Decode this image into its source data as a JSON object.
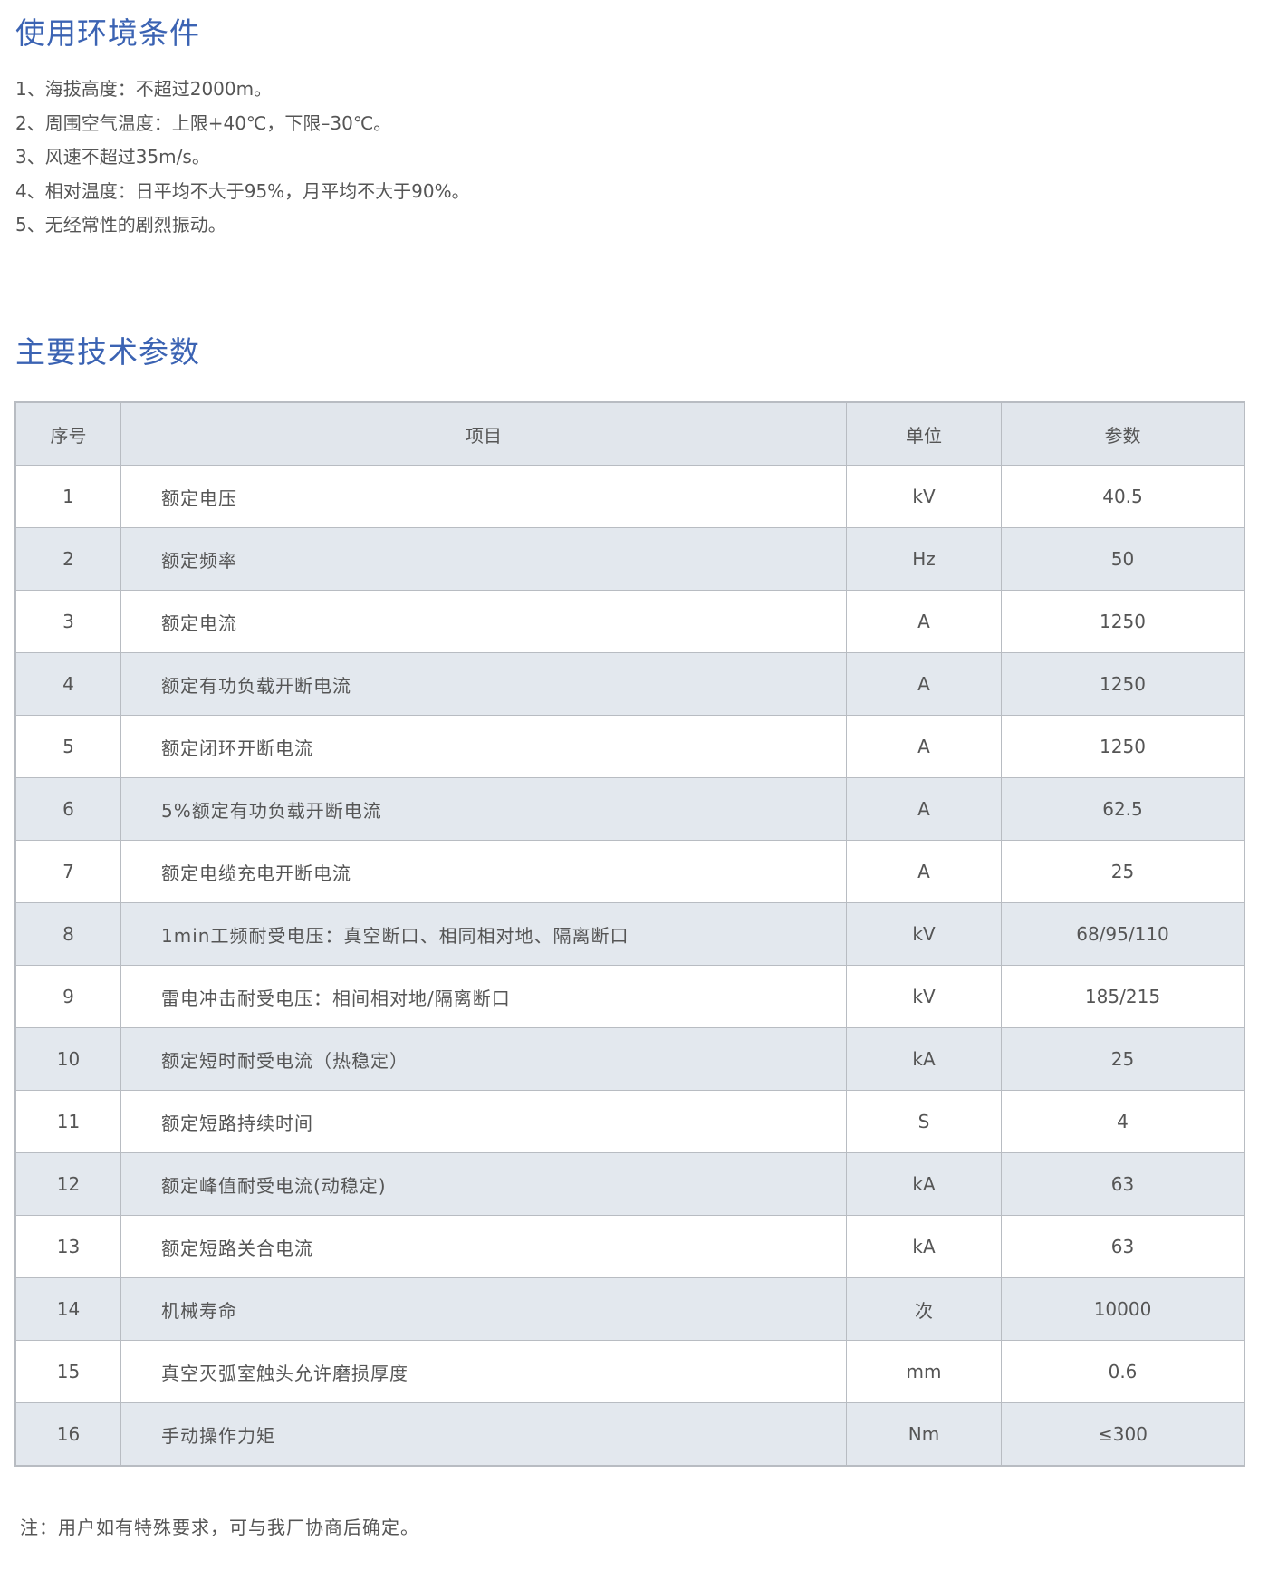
{
  "env": {
    "title": "使用环境条件",
    "items": [
      "1、海拔高度：不超过2000m。",
      "2、周围空气温度：上限+40℃，下限–30℃。",
      "3、风速不超过35m/s。",
      "4、相对温度：日平均不大于95%，月平均不大于90%。",
      "5、无经常性的剧烈振动。"
    ]
  },
  "params": {
    "title": "主要技术参数",
    "headers": [
      "序号",
      "项目",
      "单位",
      "参数"
    ],
    "rows": [
      [
        "1",
        "额定电压",
        "kV",
        "40.5"
      ],
      [
        "2",
        "额定频率",
        "Hz",
        "50"
      ],
      [
        "3",
        "额定电流",
        "A",
        "1250"
      ],
      [
        "4",
        "额定有功负载开断电流",
        "A",
        "1250"
      ],
      [
        "5",
        "额定闭环开断电流",
        "A",
        "1250"
      ],
      [
        "6",
        "5%额定有功负载开断电流",
        "A",
        "62.5"
      ],
      [
        "7",
        "额定电缆充电开断电流",
        "A",
        "25"
      ],
      [
        "8",
        "1min工频耐受电压：真空断口、相同相对地、隔离断口",
        "kV",
        "68/95/110"
      ],
      [
        "9",
        "雷电冲击耐受电压：相间相对地/隔离断口",
        "kV",
        "185/215"
      ],
      [
        "10",
        "额定短时耐受电流（热稳定）",
        "kA",
        "25"
      ],
      [
        "11",
        "额定短路持续时间",
        "S",
        "4"
      ],
      [
        "12",
        "额定峰值耐受电流(动稳定)",
        "kA",
        "63"
      ],
      [
        "13",
        "额定短路关合电流",
        "kA",
        "63"
      ],
      [
        "14",
        "机械寿命",
        "次",
        "10000"
      ],
      [
        "15",
        "真空灭弧室触头允许磨损厚度",
        "mm",
        "0.6"
      ],
      [
        "16",
        "手动操作力矩",
        "Nm",
        "≤300"
      ]
    ],
    "note": "注：用户如有特殊要求，可与我厂协商后确定。"
  }
}
